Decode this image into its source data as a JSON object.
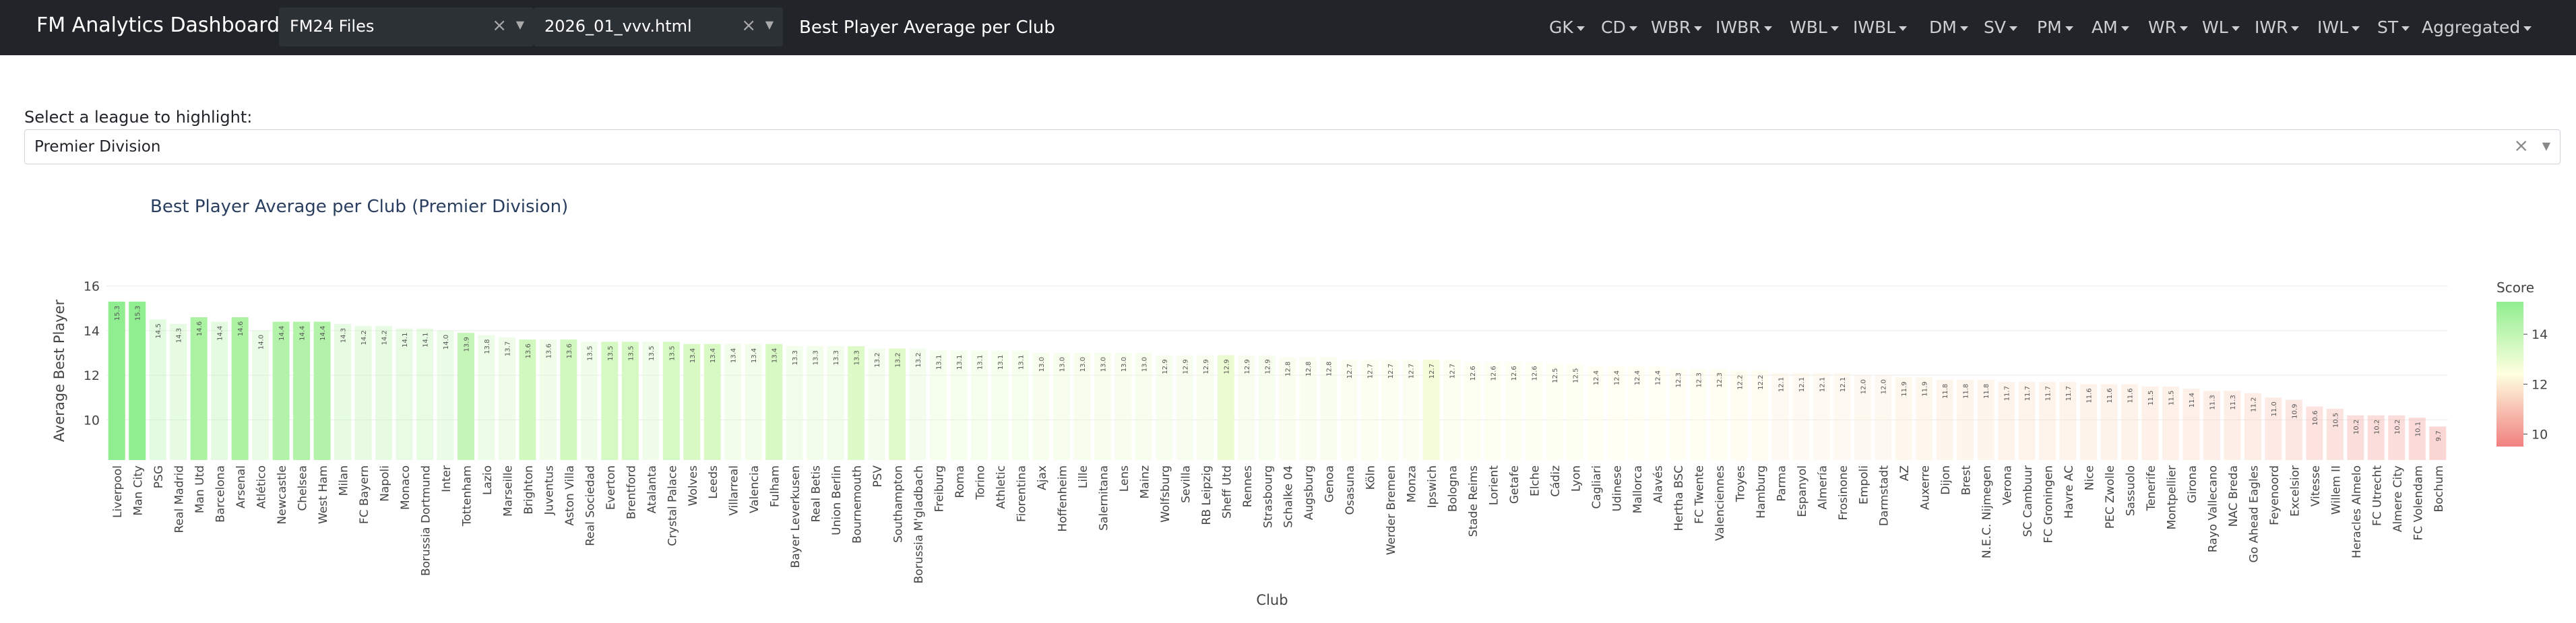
{
  "navbar": {
    "brand": "FM Analytics Dashboard",
    "files_select": {
      "value": "FM24 Files"
    },
    "file_select": {
      "value": "2026_01_vvv.html"
    },
    "page_title": "Best Player Average per Club",
    "menus": [
      "GK",
      "CD",
      "WBR",
      "IWBR",
      "WBL",
      "IWBL",
      "DM",
      "SV",
      "PM",
      "AM",
      "WR",
      "WL",
      "IWR",
      "IWL",
      "ST",
      "Aggregated"
    ]
  },
  "league_filter": {
    "label": "Select a league to highlight:",
    "value": "Premier Division"
  },
  "chart_data": {
    "type": "bar",
    "title": "Best Player Average per Club (Premier Division)",
    "xlabel": "Club",
    "ylabel": "Average Best Player",
    "ylim": [
      8.2,
      16.2
    ],
    "yticks": [
      10,
      12,
      14,
      16
    ],
    "categories": [
      "Liverpool",
      "Man City",
      "PSG",
      "Real Madrid",
      "Man Utd",
      "Barcelona",
      "Arsenal",
      "Atlético",
      "Newcastle",
      "Chelsea",
      "West Ham",
      "Milan",
      "FC Bayern",
      "Napoli",
      "Monaco",
      "Borussia Dortmund",
      "Inter",
      "Tottenham",
      "Lazio",
      "Marseille",
      "Brighton",
      "Juventus",
      "Aston Villa",
      "Real Sociedad",
      "Everton",
      "Brentford",
      "Atalanta",
      "Crystal Palace",
      "Wolves",
      "Leeds",
      "Villarreal",
      "Valencia",
      "Fulham",
      "Bayer Leverkusen",
      "Real Betis",
      "Union Berlin",
      "Bournemouth",
      "PSV",
      "Southampton",
      "Borussia M'gladbach",
      "Freiburg",
      "Roma",
      "Torino",
      "Athletic",
      "Fiorentina",
      "Ajax",
      "Hoffenheim",
      "Lille",
      "Salernitana",
      "Lens",
      "Mainz",
      "Wolfsburg",
      "Sevilla",
      "RB Leipzig",
      "Sheff Utd",
      "Rennes",
      "Strasbourg",
      "Schalke 04",
      "Augsburg",
      "Genoa",
      "Osasuna",
      "Köln",
      "Werder Bremen",
      "Monza",
      "Ipswich",
      "Bologna",
      "Stade Reims",
      "Lorient",
      "Getafe",
      "Elche",
      "Cádiz",
      "Lyon",
      "Cagliari",
      "Udinese",
      "Mallorca",
      "Alavés",
      "Hertha BSC",
      "FC Twente",
      "Valenciennes",
      "Troyes",
      "Hamburg",
      "Parma",
      "Espanyol",
      "Almería",
      "Frosinone",
      "Empoli",
      "Darmstadt",
      "AZ",
      "Auxerre",
      "Dijon",
      "Brest",
      "N.E.C. Nijmegen",
      "Verona",
      "SC Cambuur",
      "FC Groningen",
      "Havre AC",
      "Nice",
      "PEC Zwolle",
      "Sassuolo",
      "Tenerife",
      "Montpellier",
      "Girona",
      "Rayo Vallecano",
      "NAC Breda",
      "Go Ahead Eagles",
      "Feyenoord",
      "Excelsior",
      "Vitesse",
      "Willem II",
      "Heracles Almelo",
      "FC Utrecht",
      "Almere City",
      "FC Volendam",
      "Bochum"
    ],
    "values": [
      15.3,
      15.3,
      14.5,
      14.3,
      14.6,
      14.4,
      14.6,
      14.0,
      14.4,
      14.4,
      14.4,
      14.3,
      14.2,
      14.2,
      14.1,
      14.1,
      14.0,
      13.9,
      13.8,
      13.7,
      13.6,
      13.6,
      13.6,
      13.5,
      13.5,
      13.5,
      13.5,
      13.5,
      13.4,
      13.4,
      13.4,
      13.4,
      13.4,
      13.3,
      13.3,
      13.3,
      13.3,
      13.2,
      13.2,
      13.2,
      13.1,
      13.1,
      13.1,
      13.1,
      13.1,
      13.0,
      13.0,
      13.0,
      13.0,
      13.0,
      13.0,
      12.9,
      12.9,
      12.9,
      12.9,
      12.9,
      12.9,
      12.8,
      12.8,
      12.8,
      12.7,
      12.7,
      12.7,
      12.7,
      12.7,
      12.7,
      12.6,
      12.6,
      12.6,
      12.6,
      12.5,
      12.5,
      12.4,
      12.4,
      12.4,
      12.4,
      12.3,
      12.3,
      12.3,
      12.2,
      12.2,
      12.1,
      12.1,
      12.1,
      12.1,
      12.0,
      12.0,
      11.9,
      11.9,
      11.8,
      11.8,
      11.8,
      11.7,
      11.7,
      11.7,
      11.7,
      11.6,
      11.6,
      11.6,
      11.5,
      11.5,
      11.4,
      11.3,
      11.3,
      11.2,
      11.0,
      10.9,
      10.6,
      10.5,
      10.2,
      10.2,
      10.2,
      10.1,
      9.7
    ],
    "highlight": [
      "Liverpool",
      "Man City",
      "Man Utd",
      "Arsenal",
      "Newcastle",
      "Chelsea",
      "West Ham",
      "Tottenham",
      "Brighton",
      "Aston Villa",
      "Everton",
      "Brentford",
      "Crystal Palace",
      "Wolves",
      "Leeds",
      "Fulham",
      "Bournemouth",
      "Southampton",
      "Sheff Utd",
      "Ipswich"
    ],
    "colorbar": {
      "title": "Score",
      "ticks": [
        10,
        12,
        14
      ],
      "range": [
        9.5,
        15.3
      ]
    },
    "colors": {
      "high": "#90ee90",
      "mid": "#ffffe0",
      "low": "#f08080",
      "dim_opacity": 0.35
    }
  }
}
